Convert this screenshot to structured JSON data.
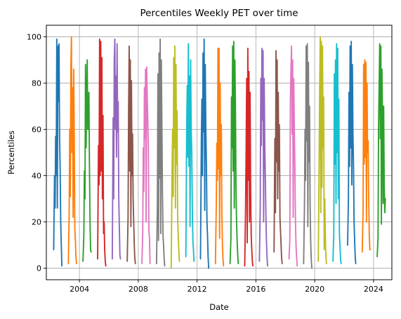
{
  "chart_data": {
    "type": "line",
    "title": "Percentiles Weekly PET over time",
    "xlabel": "Date",
    "ylabel": "Percentiles",
    "xlim": [
      "2001-10-01",
      "2025-04-01"
    ],
    "ylim": [
      -5,
      105
    ],
    "x_ticks": [
      {
        "date": "2004-01-01",
        "label": "2004"
      },
      {
        "date": "2008-01-01",
        "label": "2008"
      },
      {
        "date": "2012-01-01",
        "label": "2012"
      },
      {
        "date": "2016-01-01",
        "label": "2016"
      },
      {
        "date": "2020-01-01",
        "label": "2020"
      },
      {
        "date": "2024-01-01",
        "label": "2024"
      }
    ],
    "y_ticks": [
      0,
      20,
      40,
      60,
      80,
      100
    ],
    "grid": true,
    "legend": "none",
    "series": [
      {
        "color": "#1f77b4",
        "x": [
          "2002-04-01",
          "2002-04-22",
          "2002-05-06",
          "2002-05-20",
          "2002-06-03",
          "2002-06-17",
          "2002-07-01",
          "2002-07-15",
          "2002-07-29",
          "2002-08-12",
          "2002-08-26",
          "2002-09-09",
          "2002-09-23",
          "2002-10-07",
          "2002-10-21"
        ],
        "values": [
          8,
          40,
          26,
          57,
          40,
          99,
          26,
          96,
          72,
          97,
          56,
          43,
          20,
          10,
          1
        ]
      },
      {
        "color": "#ff7f0e",
        "x": [
          "2003-03-31",
          "2003-04-21",
          "2003-05-05",
          "2003-05-19",
          "2003-06-02",
          "2003-06-16",
          "2003-06-30",
          "2003-07-14",
          "2003-07-28",
          "2003-08-11",
          "2003-08-25",
          "2003-09-08",
          "2003-09-22",
          "2003-10-06",
          "2003-10-20"
        ],
        "values": [
          2,
          24,
          60,
          31,
          86,
          100,
          50,
          78,
          22,
          86,
          56,
          17,
          12,
          5,
          2
        ]
      },
      {
        "color": "#2ca02c",
        "x": [
          "2004-03-29",
          "2004-04-19",
          "2004-05-03",
          "2004-05-17",
          "2004-05-31",
          "2004-06-14",
          "2004-06-28",
          "2004-07-12",
          "2004-07-26",
          "2004-08-09",
          "2004-08-23",
          "2004-09-06",
          "2004-09-20",
          "2004-10-04",
          "2004-10-18"
        ],
        "values": [
          3,
          14,
          42,
          30,
          88,
          52,
          71,
          90,
          60,
          60,
          76,
          44,
          20,
          8,
          7
        ]
      },
      {
        "color": "#d62728",
        "x": [
          "2005-03-28",
          "2005-04-18",
          "2005-05-02",
          "2005-05-16",
          "2005-05-30",
          "2005-06-13",
          "2005-06-27",
          "2005-07-11",
          "2005-07-25",
          "2005-08-08",
          "2005-08-22",
          "2005-09-05",
          "2005-09-19",
          "2005-10-03",
          "2005-10-17"
        ],
        "values": [
          4,
          53,
          36,
          99,
          40,
          98,
          42,
          91,
          30,
          66,
          15,
          20,
          8,
          3,
          1
        ]
      },
      {
        "color": "#9467bd",
        "x": [
          "2006-03-27",
          "2006-04-17",
          "2006-05-01",
          "2006-05-15",
          "2006-05-29",
          "2006-06-12",
          "2006-06-26",
          "2006-07-10",
          "2006-07-24",
          "2006-08-07",
          "2006-08-21",
          "2006-09-04",
          "2006-09-18",
          "2006-10-02",
          "2006-10-16"
        ],
        "values": [
          4,
          65,
          30,
          90,
          99,
          60,
          83,
          48,
          97,
          59,
          72,
          30,
          18,
          6,
          4
        ]
      },
      {
        "color": "#8c564b",
        "x": [
          "2007-04-02",
          "2007-04-23",
          "2007-05-07",
          "2007-05-21",
          "2007-06-04",
          "2007-06-18",
          "2007-07-02",
          "2007-07-16",
          "2007-07-30",
          "2007-08-13",
          "2007-08-27",
          "2007-09-10",
          "2007-09-24",
          "2007-10-08",
          "2007-10-22"
        ],
        "values": [
          3,
          22,
          70,
          96,
          42,
          90,
          18,
          81,
          40,
          58,
          30,
          20,
          10,
          4,
          2
        ]
      },
      {
        "color": "#e377c2",
        "x": [
          "2008-03-31",
          "2008-04-21",
          "2008-05-05",
          "2008-05-19",
          "2008-06-02",
          "2008-06-16",
          "2008-06-30",
          "2008-07-14",
          "2008-07-28",
          "2008-08-11",
          "2008-08-25",
          "2008-09-08",
          "2008-09-22",
          "2008-10-06",
          "2008-10-20"
        ],
        "values": [
          2,
          15,
          52,
          33,
          78,
          56,
          86,
          20,
          87,
          74,
          64,
          52,
          16,
          13,
          2
        ]
      },
      {
        "color": "#7f7f7f",
        "x": [
          "2009-03-30",
          "2009-04-20",
          "2009-05-04",
          "2009-05-18",
          "2009-06-01",
          "2009-06-15",
          "2009-06-29",
          "2009-07-13",
          "2009-07-27",
          "2009-08-10",
          "2009-08-24",
          "2009-09-07",
          "2009-09-21",
          "2009-10-05",
          "2009-10-19"
        ],
        "values": [
          2,
          27,
          84,
          12,
          93,
          39,
          99,
          15,
          90,
          62,
          33,
          14,
          10,
          4,
          1
        ]
      },
      {
        "color": "#bcbd22",
        "x": [
          "2010-03-29",
          "2010-04-19",
          "2010-05-03",
          "2010-05-17",
          "2010-05-31",
          "2010-06-14",
          "2010-06-28",
          "2010-07-12",
          "2010-07-26",
          "2010-08-09",
          "2010-08-23",
          "2010-09-06",
          "2010-09-20",
          "2010-10-04",
          "2010-10-18"
        ],
        "values": [
          0,
          40,
          60,
          31,
          91,
          52,
          96,
          26,
          88,
          45,
          68,
          22,
          14,
          8,
          3
        ]
      },
      {
        "color": "#17becf",
        "x": [
          "2011-03-28",
          "2011-04-18",
          "2011-05-02",
          "2011-05-16",
          "2011-05-30",
          "2011-06-13",
          "2011-06-27",
          "2011-07-11",
          "2011-07-25",
          "2011-08-08",
          "2011-08-22",
          "2011-09-05",
          "2011-09-19",
          "2011-10-03",
          "2011-10-17"
        ],
        "values": [
          5,
          60,
          79,
          48,
          97,
          44,
          83,
          18,
          90,
          60,
          50,
          26,
          12,
          8,
          3
        ]
      },
      {
        "color": "#1f77b4",
        "x": [
          "2012-03-26",
          "2012-04-16",
          "2012-04-30",
          "2012-05-14",
          "2012-05-28",
          "2012-06-11",
          "2012-06-25",
          "2012-07-09",
          "2012-07-23",
          "2012-08-06",
          "2012-08-20",
          "2012-09-03",
          "2012-09-17",
          "2012-10-01",
          "2012-10-15"
        ],
        "values": [
          4,
          54,
          73,
          40,
          93,
          59,
          99,
          25,
          88,
          60,
          45,
          20,
          14,
          5,
          0
        ]
      },
      {
        "color": "#ff7f0e",
        "x": [
          "2013-04-01",
          "2013-04-22",
          "2013-05-06",
          "2013-05-20",
          "2013-06-03",
          "2013-06-17",
          "2013-06-30",
          "2013-07-14",
          "2013-07-28",
          "2013-08-11",
          "2013-08-25",
          "2013-09-08",
          "2013-09-22",
          "2013-10-06",
          "2013-10-20"
        ],
        "values": [
          2,
          27,
          54,
          38,
          95,
          43,
          95,
          13,
          80,
          40,
          62,
          24,
          10,
          4,
          1
        ]
      },
      {
        "color": "#2ca02c",
        "x": [
          "2014-03-31",
          "2014-04-21",
          "2014-05-05",
          "2014-05-19",
          "2014-06-02",
          "2014-06-16",
          "2014-06-30",
          "2014-07-14",
          "2014-07-28",
          "2014-08-11",
          "2014-08-25",
          "2014-09-08",
          "2014-09-22",
          "2014-10-06",
          "2014-10-20"
        ],
        "values": [
          2,
          13,
          74,
          52,
          96,
          42,
          98,
          26,
          90,
          70,
          35,
          20,
          12,
          6,
          2
        ]
      },
      {
        "color": "#d62728",
        "x": [
          "2015-03-30",
          "2015-04-20",
          "2015-05-04",
          "2015-05-18",
          "2015-06-01",
          "2015-06-15",
          "2015-06-29",
          "2015-07-13",
          "2015-07-27",
          "2015-08-10",
          "2015-08-24",
          "2015-09-07",
          "2015-09-21",
          "2015-10-05",
          "2015-10-19"
        ],
        "values": [
          1,
          26,
          52,
          82,
          11,
          95,
          38,
          85,
          20,
          76,
          33,
          14,
          8,
          3,
          1
        ]
      },
      {
        "color": "#9467bd",
        "x": [
          "2016-03-28",
          "2016-04-18",
          "2016-05-02",
          "2016-05-16",
          "2016-05-30",
          "2016-06-13",
          "2016-06-27",
          "2016-07-11",
          "2016-07-25",
          "2016-08-08",
          "2016-08-22",
          "2016-09-05",
          "2016-09-19",
          "2016-10-03",
          "2016-10-17"
        ],
        "values": [
          3,
          26,
          82,
          53,
          95,
          64,
          94,
          20,
          82,
          55,
          40,
          24,
          12,
          5,
          1
        ]
      },
      {
        "color": "#8c564b",
        "x": [
          "2017-03-27",
          "2017-04-17",
          "2017-05-01",
          "2017-05-15",
          "2017-05-29",
          "2017-06-12",
          "2017-06-26",
          "2017-07-10",
          "2017-07-24",
          "2017-08-07",
          "2017-08-21",
          "2017-09-04",
          "2017-09-18",
          "2017-10-02",
          "2017-10-16"
        ],
        "values": [
          7,
          56,
          24,
          94,
          46,
          90,
          30,
          76,
          42,
          62,
          22,
          16,
          10,
          4,
          2
        ]
      },
      {
        "color": "#e377c2",
        "x": [
          "2018-04-02",
          "2018-04-23",
          "2018-05-07",
          "2018-05-21",
          "2018-06-04",
          "2018-06-18",
          "2018-07-02",
          "2018-07-16",
          "2018-07-30",
          "2018-08-13",
          "2018-08-27",
          "2018-09-10",
          "2018-09-24",
          "2018-10-08",
          "2018-10-22"
        ],
        "values": [
          4,
          12,
          73,
          85,
          96,
          58,
          90,
          22,
          82,
          60,
          44,
          20,
          10,
          5,
          1
        ]
      },
      {
        "color": "#7f7f7f",
        "x": [
          "2019-04-01",
          "2019-04-22",
          "2019-05-06",
          "2019-05-20",
          "2019-06-03",
          "2019-06-17",
          "2019-07-01",
          "2019-07-15",
          "2019-07-29",
          "2019-08-12",
          "2019-08-26",
          "2019-09-09",
          "2019-09-23",
          "2019-10-07",
          "2019-10-21"
        ],
        "values": [
          2,
          27,
          60,
          38,
          96,
          55,
          97,
          18,
          89,
          46,
          70,
          27,
          12,
          4,
          0
        ]
      },
      {
        "color": "#bcbd22",
        "x": [
          "2020-03-30",
          "2020-04-20",
          "2020-05-04",
          "2020-05-18",
          "2020-06-01",
          "2020-06-15",
          "2020-06-29",
          "2020-07-13",
          "2020-07-27",
          "2020-08-10",
          "2020-08-24",
          "2020-09-07",
          "2020-09-21",
          "2020-10-05",
          "2020-10-19"
        ],
        "values": [
          3,
          46,
          78,
          100,
          24,
          98,
          35,
          96,
          52,
          74,
          8,
          30,
          14,
          5,
          2
        ]
      },
      {
        "color": "#17becf",
        "x": [
          "2021-03-29",
          "2021-04-19",
          "2021-05-03",
          "2021-05-17",
          "2021-05-31",
          "2021-06-14",
          "2021-06-28",
          "2021-07-12",
          "2021-07-26",
          "2021-08-09",
          "2021-08-23",
          "2021-09-06",
          "2021-09-20",
          "2021-10-04",
          "2021-10-18"
        ],
        "values": [
          3,
          15,
          84,
          45,
          90,
          28,
          97,
          50,
          95,
          30,
          73,
          15,
          10,
          4,
          2
        ]
      },
      {
        "color": "#1f77b4",
        "x": [
          "2022-03-28",
          "2022-04-18",
          "2022-05-02",
          "2022-05-16",
          "2022-05-30",
          "2022-06-13",
          "2022-06-27",
          "2022-07-11",
          "2022-07-25",
          "2022-08-08",
          "2022-08-22",
          "2022-09-05",
          "2022-09-19",
          "2022-10-03",
          "2022-10-17"
        ],
        "values": [
          10,
          30,
          76,
          44,
          96,
          52,
          98,
          36,
          88,
          58,
          45,
          20,
          12,
          5,
          2
        ]
      },
      {
        "color": "#ff7f0e",
        "x": [
          "2023-03-27",
          "2023-04-17",
          "2023-05-01",
          "2023-05-15",
          "2023-05-29",
          "2023-06-12",
          "2023-06-26",
          "2023-07-10",
          "2023-07-24",
          "2023-08-07",
          "2023-08-21",
          "2023-09-04",
          "2023-09-18",
          "2023-10-02",
          "2023-10-16"
        ],
        "values": [
          7,
          25,
          88,
          45,
          90,
          48,
          89,
          20,
          80,
          50,
          55,
          30,
          14,
          8,
          8
        ]
      },
      {
        "color": "#2ca02c",
        "x": [
          "2024-04-01",
          "2024-04-22",
          "2024-05-06",
          "2024-05-20",
          "2024-06-03",
          "2024-06-17",
          "2024-07-01",
          "2024-07-15",
          "2024-07-29",
          "2024-08-12",
          "2024-08-26",
          "2024-09-09",
          "2024-09-23",
          "2024-10-07",
          "2024-10-21"
        ],
        "values": [
          5,
          13,
          62,
          79,
          97,
          56,
          96,
          19,
          86,
          64,
          28,
          70,
          36,
          24,
          30
        ]
      }
    ]
  }
}
